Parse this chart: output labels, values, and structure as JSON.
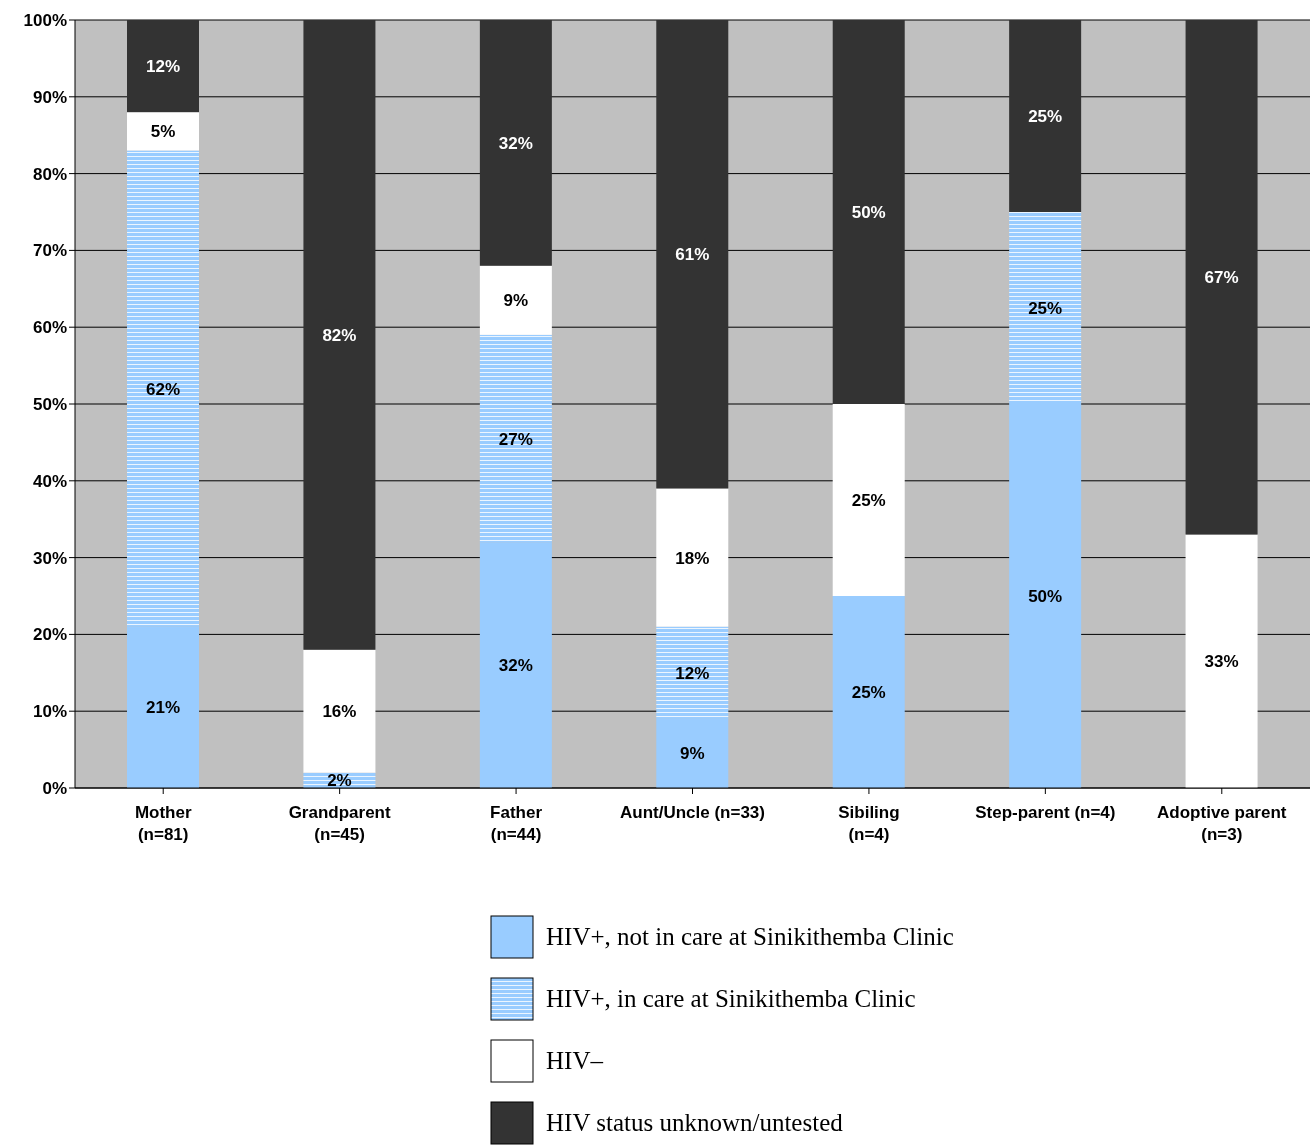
{
  "chart_data": {
    "type": "bar",
    "stacked": true,
    "categories": [
      "Mother\n(n=81)",
      "Grandparent\n(n=45)",
      "Father\n(n=44)",
      "Aunt/Uncle (n=33)",
      "Sibiling\n(n=4)",
      "Step-parent (n=4)",
      "Adoptive parent\n(n=3)"
    ],
    "series": [
      {
        "name": "HIV+, not in care at Sinikithemba Clinic",
        "color": "#99ccff",
        "values": [
          21,
          null,
          32,
          9,
          25,
          50,
          null
        ],
        "value_labels": [
          "21%",
          null,
          "32%",
          "9%",
          "25%",
          "50%",
          null
        ]
      },
      {
        "name": "HIV+, in care at Sinikithemba Clinic",
        "color": "#99ccff",
        "values": [
          62,
          2,
          27,
          12,
          null,
          25,
          null
        ],
        "value_labels": [
          "62%",
          "2%",
          "27%",
          "12%",
          null,
          "25%",
          null
        ]
      },
      {
        "name": "HIV–",
        "color": "#ffffff",
        "values": [
          5,
          16,
          9,
          18,
          25,
          null,
          33
        ],
        "value_labels": [
          "5%",
          "16%",
          "9%",
          "18%",
          "25%",
          null,
          "33%"
        ]
      },
      {
        "name": "HIV status unknown/untested",
        "color": "#333333",
        "values": [
          12,
          82,
          32,
          61,
          50,
          25,
          67
        ],
        "value_labels": [
          "12%",
          "82%",
          "32%",
          "61%",
          "50%",
          "25%",
          "67%"
        ]
      }
    ],
    "ylim": [
      0,
      100
    ],
    "yticks": [
      {
        "value": 0,
        "label": "0%"
      },
      {
        "value": 10,
        "label": "10%"
      },
      {
        "value": 20,
        "label": "20%"
      },
      {
        "value": 30,
        "label": "30%"
      },
      {
        "value": 40,
        "label": "40%"
      },
      {
        "value": 50,
        "label": "50%"
      },
      {
        "value": 60,
        "label": "60%"
      },
      {
        "value": 70,
        "label": "70%"
      },
      {
        "value": 80,
        "label": "80%"
      },
      {
        "value": 90,
        "label": "90%"
      },
      {
        "value": 100,
        "label": "100%"
      }
    ],
    "grid": "y",
    "legend": "bottom"
  }
}
